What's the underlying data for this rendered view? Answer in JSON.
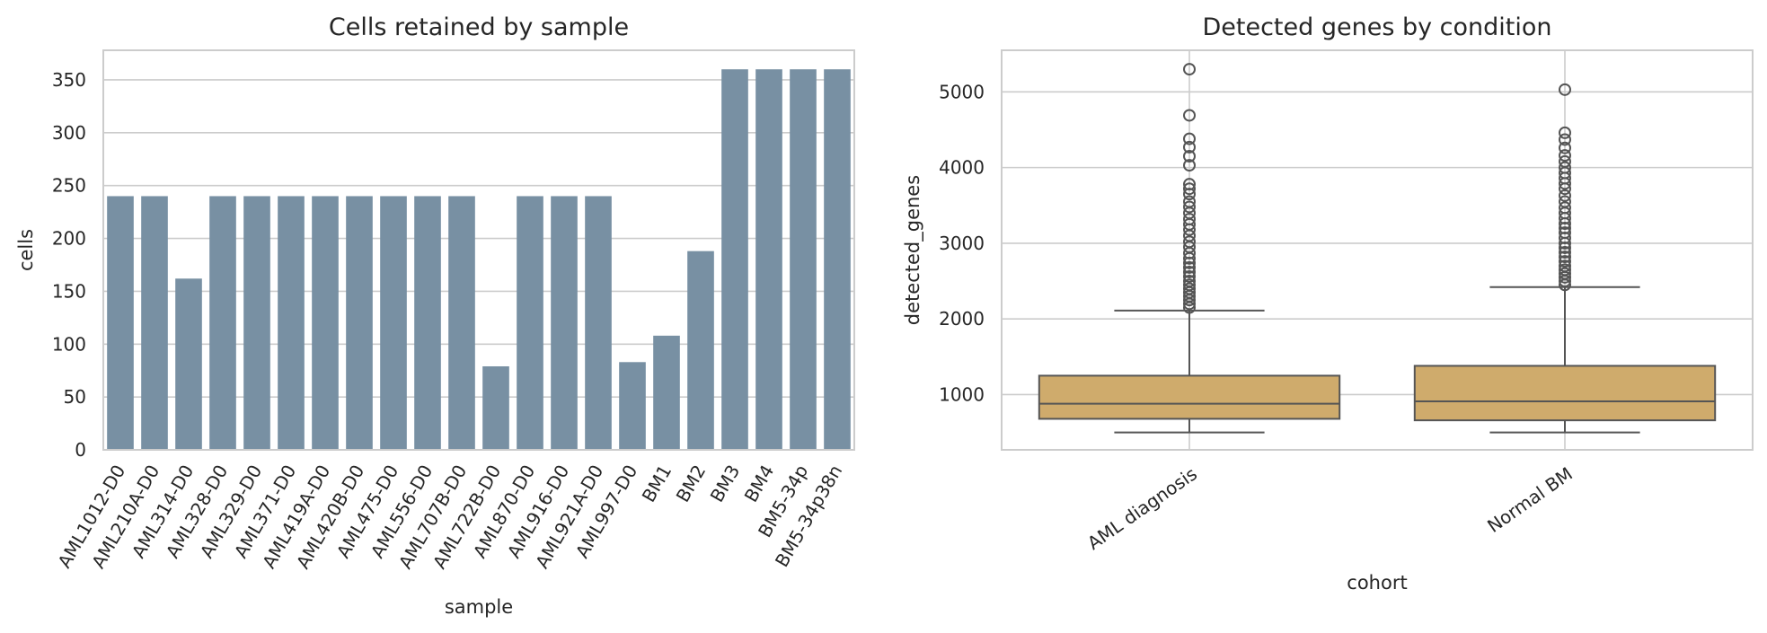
{
  "chart_data": [
    {
      "type": "bar",
      "title": "Cells retained by sample",
      "xlabel": "sample",
      "ylabel": "cells",
      "ylim": [
        0,
        378
      ],
      "yticks": [
        0,
        50,
        100,
        150,
        200,
        250,
        300,
        350
      ],
      "grid": "y",
      "color": "#7890a3",
      "categories": [
        "AML1012-D0",
        "AML210A-D0",
        "AML314-D0",
        "AML328-D0",
        "AML329-D0",
        "AML371-D0",
        "AML419A-D0",
        "AML420B-D0",
        "AML475-D0",
        "AML556-D0",
        "AML707B-D0",
        "AML722B-D0",
        "AML870-D0",
        "AML916-D0",
        "AML921A-D0",
        "AML997-D0",
        "BM1",
        "BM2",
        "BM3",
        "BM4",
        "BM5-34p",
        "BM5-34p38n"
      ],
      "values": [
        240,
        240,
        162,
        240,
        240,
        240,
        240,
        240,
        240,
        240,
        240,
        79,
        240,
        240,
        240,
        83,
        108,
        188,
        360,
        360,
        360,
        360
      ]
    },
    {
      "type": "box",
      "title": "Detected genes by condition",
      "xlabel": "cohort",
      "ylabel": "detected_genes",
      "ylim": [
        270,
        5550
      ],
      "yticks": [
        1000,
        2000,
        3000,
        4000,
        5000
      ],
      "grid": "both",
      "color": "#cfab6c",
      "categories": [
        "AML diagnosis",
        "Normal BM"
      ],
      "boxes": [
        {
          "whisker_low": 500,
          "q1": 680,
          "median": 880,
          "q3": 1250,
          "whisker_high": 2110,
          "outliers": [
            2150,
            2200,
            2250,
            2300,
            2350,
            2400,
            2450,
            2500,
            2560,
            2620,
            2680,
            2740,
            2800,
            2870,
            2950,
            3020,
            3100,
            3180,
            3250,
            3320,
            3400,
            3480,
            3550,
            3650,
            3720,
            3780,
            4030,
            4150,
            4270,
            4380,
            4690,
            5300
          ]
        },
        {
          "whisker_low": 500,
          "q1": 660,
          "median": 910,
          "q3": 1380,
          "whisker_high": 2420,
          "outliers": [
            2450,
            2500,
            2550,
            2600,
            2650,
            2700,
            2760,
            2820,
            2880,
            2940,
            3000,
            3070,
            3140,
            3200,
            3260,
            3330,
            3400,
            3470,
            3550,
            3630,
            3720,
            3790,
            3860,
            3930,
            4000,
            4080,
            4160,
            4260,
            4370,
            4460,
            5030
          ]
        }
      ]
    }
  ]
}
